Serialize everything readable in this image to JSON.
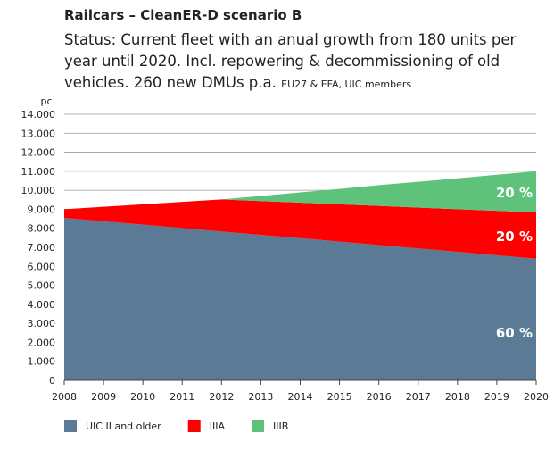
{
  "chart_data": {
    "type": "stacked-area",
    "title": "Railcars – CleanER-D scenario B",
    "subtitle": [
      "Status: Current fleet with an anual growth from 180 units per",
      "year until 2020. Incl. repowering & decommissioning of old",
      "vehicles. 260 new DMUs p.a."
    ],
    "note": "EU27 & EFA, UIC members",
    "y_label": "pc.",
    "x": [
      2008,
      2009,
      2010,
      2011,
      2012,
      2013,
      2014,
      2015,
      2016,
      2017,
      2018,
      2019,
      2020
    ],
    "xlim": [
      2008,
      2020
    ],
    "ylim": [
      0,
      14000
    ],
    "yticks": [
      0,
      {
        "value": 1000,
        "label": "1.000"
      },
      {
        "value": 2000,
        "label": "2.000"
      },
      {
        "value": 3000,
        "label": "3.000"
      },
      {
        "value": 4000,
        "label": "4.000"
      },
      {
        "value": 5000,
        "label": "5.000"
      },
      {
        "value": 6000,
        "label": "6.000"
      },
      {
        "value": 7000,
        "label": "7.000"
      },
      {
        "value": 8000,
        "label": "8.000"
      },
      {
        "value": 9000,
        "label": "9.000"
      },
      {
        "value": 10000,
        "label": "10.000"
      },
      {
        "value": 11000,
        "label": "11.000"
      },
      {
        "value": 12000,
        "label": "12.000"
      },
      {
        "value": 13000,
        "label": "13.000"
      },
      {
        "value": 14000,
        "label": "14.000"
      }
    ],
    "grid": true,
    "legend": "bottom",
    "series": [
      {
        "name": "UIC II and older",
        "color": "#5b7a96",
        "label": "60 %",
        "values": [
          8550,
          8370,
          8190,
          8010,
          7830,
          7650,
          7480,
          7300,
          7120,
          6940,
          6760,
          6580,
          6400
        ]
      },
      {
        "name": "IIIA",
        "color": "#ff0000",
        "label": "20 %",
        "values": [
          450,
          760,
          1070,
          1380,
          1690,
          1780,
          1870,
          1960,
          2060,
          2150,
          2240,
          2340,
          2430
        ]
      },
      {
        "name": "IIIB",
        "color": "#5ec27a",
        "label": "20 %",
        "values": [
          0,
          0,
          0,
          0,
          0,
          270,
          540,
          810,
          1090,
          1360,
          1630,
          1900,
          2170
        ]
      }
    ]
  }
}
